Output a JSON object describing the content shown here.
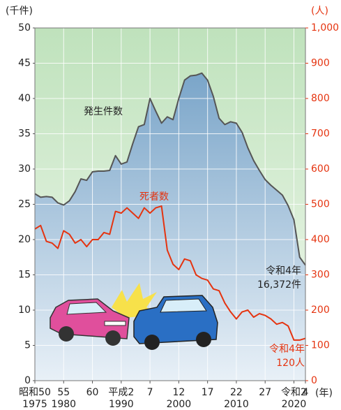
{
  "chart_data": {
    "type": "line",
    "y_axis_label": "(千件)",
    "y2_axis_label": "(人)",
    "x_unit": "(年)",
    "xlim": [
      1975,
      2022
    ],
    "xticks": [
      {
        "value": 1975,
        "label": "昭和50"
      },
      {
        "value": 1980,
        "label": "55"
      },
      {
        "value": 1985,
        "label": "60"
      },
      {
        "value": 1990,
        "label": "平成2"
      },
      {
        "value": 1995,
        "label": "7"
      },
      {
        "value": 2000,
        "label": "12"
      },
      {
        "value": 2005,
        "label": "17"
      },
      {
        "value": 2010,
        "label": "22"
      },
      {
        "value": 2015,
        "label": "27"
      },
      {
        "value": 2020,
        "label": "令和2"
      },
      {
        "value": 2022,
        "label": "4"
      }
    ],
    "x_year_labels": [
      1975,
      1980,
      1990,
      2000,
      2010,
      2020
    ],
    "ylim": [
      0,
      50
    ],
    "yticks": [
      0,
      5,
      10,
      15,
      20,
      25,
      30,
      35,
      40,
      45,
      50
    ],
    "y2lim": [
      0,
      1000
    ],
    "y2ticks": [
      0,
      100,
      200,
      300,
      400,
      500,
      600,
      700,
      800,
      900,
      {
        "value": 1000,
        "label": "1,000"
      }
    ],
    "grid": true,
    "x": [
      1975,
      1976,
      1977,
      1978,
      1979,
      1980,
      1981,
      1982,
      1983,
      1984,
      1985,
      1986,
      1987,
      1988,
      1989,
      1990,
      1991,
      1992,
      1993,
      1994,
      1995,
      1996,
      1997,
      1998,
      1999,
      2000,
      2001,
      2002,
      2003,
      2004,
      2005,
      2006,
      2007,
      2008,
      2009,
      2010,
      2011,
      2012,
      2013,
      2014,
      2015,
      2016,
      2017,
      2018,
      2019,
      2020,
      2021,
      2022
    ],
    "series": [
      {
        "name": "発生件数",
        "color": "#555555",
        "fill": "#6f9cc3",
        "values": [
          26.5,
          26.0,
          26.1,
          26.0,
          25.2,
          24.9,
          25.5,
          26.8,
          28.6,
          28.4,
          29.6,
          29.7,
          29.7,
          29.8,
          31.9,
          30.7,
          31.0,
          33.6,
          36.0,
          36.3,
          40.0,
          38.2,
          36.5,
          37.4,
          37.0,
          40.0,
          42.6,
          43.2,
          43.3,
          43.6,
          42.6,
          40.3,
          37.2,
          36.3,
          36.7,
          36.5,
          35.2,
          33.0,
          31.2,
          29.8,
          28.5,
          27.7,
          27.0,
          26.3,
          24.8,
          22.8,
          17.5,
          16.372
        ]
      },
      {
        "name": "死者数",
        "color": "#e5330f",
        "axis": "y2",
        "values": [
          430,
          440,
          395,
          390,
          375,
          425,
          415,
          390,
          400,
          380,
          400,
          400,
          420,
          415,
          480,
          475,
          490,
          475,
          460,
          490,
          475,
          490,
          495,
          370,
          330,
          315,
          345,
          340,
          300,
          290,
          285,
          260,
          255,
          220,
          195,
          175,
          195,
          200,
          180,
          190,
          185,
          175,
          160,
          165,
          155,
          115,
          115,
          120
        ]
      }
    ],
    "annotations": [
      {
        "text": [
          "令和4年",
          "16,372件"
        ],
        "series": 0
      },
      {
        "text": [
          "令和4年",
          "120人"
        ],
        "series": 1
      }
    ]
  }
}
